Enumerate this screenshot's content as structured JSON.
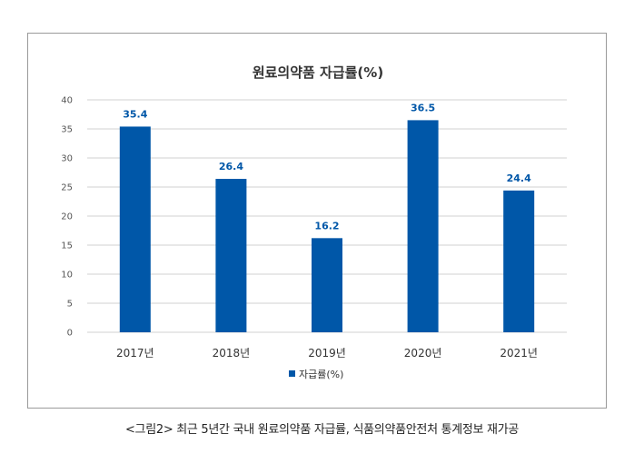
{
  "chart_data": {
    "type": "bar",
    "title": "원료의약품 자급률(%)",
    "categories": [
      "2017년",
      "2018년",
      "2019년",
      "2020년",
      "2021년"
    ],
    "series": [
      {
        "name": "자급률(%)",
        "values": [
          35.4,
          26.4,
          16.2,
          36.5,
          24.4
        ],
        "value_labels": [
          "35.4",
          "26.4",
          "16.2",
          "36.5",
          "24.4"
        ]
      }
    ],
    "ylim": [
      0,
      40
    ],
    "yticks": [
      0,
      5,
      10,
      15,
      20,
      25,
      30,
      35,
      40
    ],
    "xlabel": "",
    "ylabel": "",
    "grid": true,
    "legend_position": "bottom-center"
  },
  "colors": {
    "bar": "#0057a8",
    "label": "#0057a8",
    "grid": "#d0d0d0"
  },
  "caption": "<그림2> 최근 5년간 국내 원료의약품 자급률, 식품의약품안전처 통계정보 재가공"
}
